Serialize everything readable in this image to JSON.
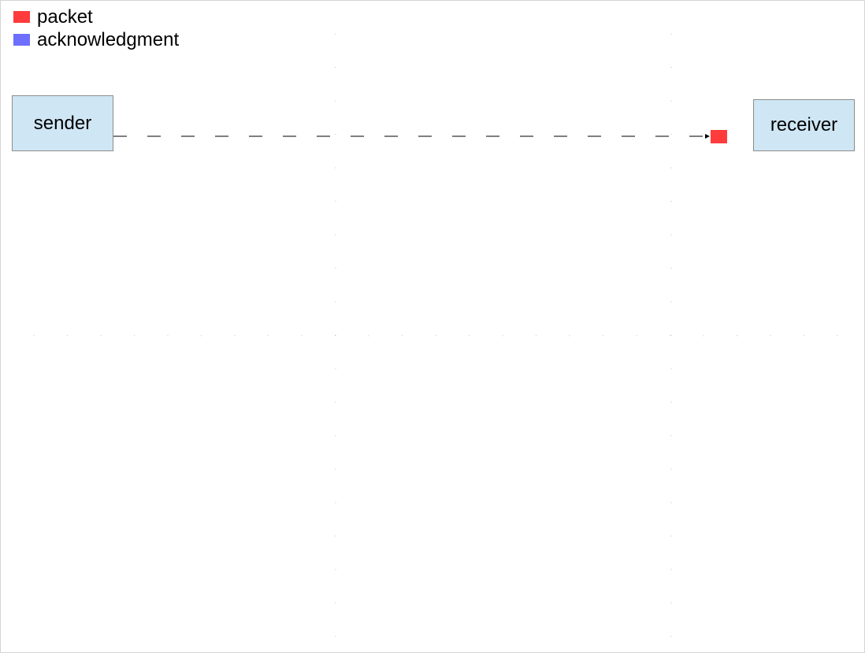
{
  "legend": {
    "items": [
      {
        "label": "packet",
        "color": "#ff3b3b"
      },
      {
        "label": "acknowledgment",
        "color": "#6e6eff"
      }
    ]
  },
  "nodes": {
    "sender": {
      "label": "sender"
    },
    "receiver": {
      "label": "receiver"
    }
  },
  "colors": {
    "node_fill": "#cfe6f4",
    "packet": "#ff3b3b",
    "acknowledgment": "#6e6eff",
    "link_line": "#333333",
    "grid_dots": "#bbbbbb"
  },
  "link": {
    "from": "sender",
    "to": "receiver",
    "style": "dashed",
    "direction": "sender-to-receiver"
  },
  "in_flight": [
    {
      "type": "packet"
    }
  ]
}
